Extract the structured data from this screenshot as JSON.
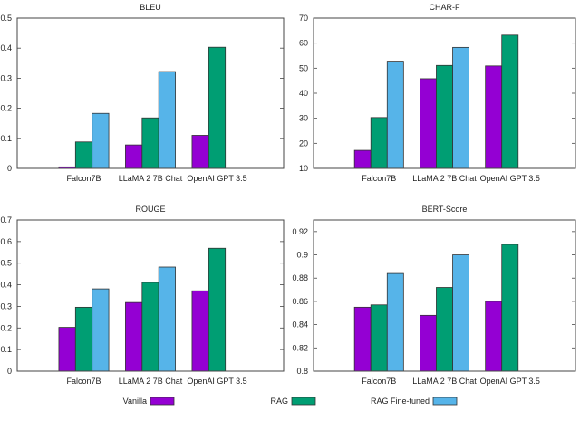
{
  "colors": {
    "Vanilla": "#9400d3",
    "RAG": "#009e73",
    "RAG Fine-tuned": "#56b4e9"
  },
  "legend": [
    "Vanilla",
    "RAG",
    "RAG Fine-tuned"
  ],
  "chart_data": [
    {
      "type": "bar",
      "title": "BLEU",
      "categories": [
        "Falcon7B",
        "LLaMA 2 7B Chat",
        "OpenAI GPT 3.5"
      ],
      "ylim": [
        0,
        0.5
      ],
      "yticks": [
        0,
        0.1,
        0.2,
        0.3,
        0.4,
        0.5
      ],
      "series": [
        {
          "name": "Vanilla",
          "values": [
            0.005,
            0.078,
            0.11
          ]
        },
        {
          "name": "RAG",
          "values": [
            0.088,
            0.168,
            0.403
          ]
        },
        {
          "name": "RAG Fine-tuned",
          "values": [
            0.183,
            0.322,
            null
          ]
        }
      ]
    },
    {
      "type": "bar",
      "title": "CHAR-F",
      "categories": [
        "Falcon7B",
        "LLaMA 2 7B Chat",
        "OpenAI GPT 3.5"
      ],
      "ylim": [
        10,
        70
      ],
      "yticks": [
        10,
        20,
        30,
        40,
        50,
        60,
        70
      ],
      "series": [
        {
          "name": "Vanilla",
          "values": [
            17.2,
            45.8,
            50.9
          ]
        },
        {
          "name": "RAG",
          "values": [
            30.3,
            51.1,
            63.2
          ]
        },
        {
          "name": "RAG Fine-tuned",
          "values": [
            52.8,
            58.3,
            null
          ]
        }
      ]
    },
    {
      "type": "bar",
      "title": "ROUGE",
      "categories": [
        "Falcon7B",
        "LLaMA 2 7B Chat",
        "OpenAI GPT 3.5"
      ],
      "ylim": [
        0,
        0.7
      ],
      "yticks": [
        0,
        0.1,
        0.2,
        0.3,
        0.4,
        0.5,
        0.6,
        0.7
      ],
      "series": [
        {
          "name": "Vanilla",
          "values": [
            0.203,
            0.318,
            0.372
          ]
        },
        {
          "name": "RAG",
          "values": [
            0.296,
            0.411,
            0.569
          ]
        },
        {
          "name": "RAG Fine-tuned",
          "values": [
            0.381,
            0.482,
            null
          ]
        }
      ]
    },
    {
      "type": "bar",
      "title": "BERT-Score",
      "categories": [
        "Falcon7B",
        "LLaMA 2 7B Chat",
        "OpenAI GPT 3.5"
      ],
      "ylim": [
        0.8,
        0.93
      ],
      "yticks": [
        0.8,
        0.82,
        0.84,
        0.86,
        0.88,
        0.9,
        0.92
      ],
      "series": [
        {
          "name": "Vanilla",
          "values": [
            0.855,
            0.848,
            0.86
          ]
        },
        {
          "name": "RAG",
          "values": [
            0.857,
            0.872,
            0.909
          ]
        },
        {
          "name": "RAG Fine-tuned",
          "values": [
            0.884,
            0.9,
            null
          ]
        }
      ]
    }
  ]
}
